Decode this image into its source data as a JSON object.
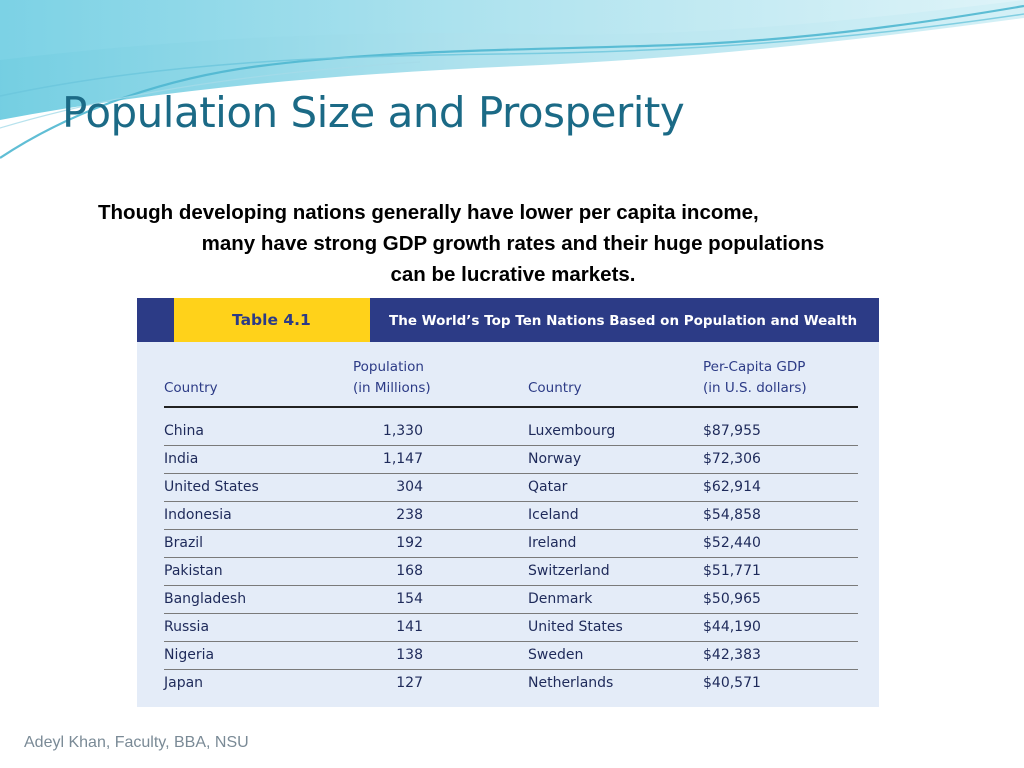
{
  "slide": {
    "title": "Population Size and Prosperity",
    "subtitle_lines": [
      "Though developing nations generally have lower per capita income,",
      "many have strong GDP growth rates and their huge populations",
      "can be lucrative markets."
    ],
    "footer": "Adeyl Khan, Faculty, BBA, NSU"
  },
  "table": {
    "label": "Table 4.1",
    "caption": "The World’s Top Ten Nations Based on Population and Wealth",
    "headers": {
      "country_pop": "Country",
      "population_l1": "Population",
      "population_l2": "(in Millions)",
      "country_gdp": "Country",
      "gdp_l1": "Per-Capita GDP",
      "gdp_l2": "(in U.S. dollars)"
    },
    "rows": [
      {
        "country": "China",
        "population": "1,330",
        "country2": "Luxembourg",
        "gdp": "$87,955"
      },
      {
        "country": "India",
        "population": "1,147",
        "country2": "Norway",
        "gdp": "$72,306"
      },
      {
        "country": "United States",
        "population": "304",
        "country2": "Qatar",
        "gdp": "$62,914"
      },
      {
        "country": "Indonesia",
        "population": "238",
        "country2": "Iceland",
        "gdp": "$54,858"
      },
      {
        "country": "Brazil",
        "population": "192",
        "country2": "Ireland",
        "gdp": "$52,440"
      },
      {
        "country": "Pakistan",
        "population": "168",
        "country2": "Switzerland",
        "gdp": "$51,771"
      },
      {
        "country": "Bangladesh",
        "population": "154",
        "country2": "Denmark",
        "gdp": "$50,965"
      },
      {
        "country": "Russia",
        "population": "141",
        "country2": "United States",
        "gdp": "$44,190"
      },
      {
        "country": "Nigeria",
        "population": "138",
        "country2": "Sweden",
        "gdp": "$42,383"
      },
      {
        "country": "Japan",
        "population": "127",
        "country2": "Netherlands",
        "gdp": "$40,571"
      }
    ]
  },
  "colors": {
    "title": "#1b6a86",
    "table_band": "#2c3b86",
    "table_label_bg": "#ffd21a",
    "table_body_bg": "#e4ecf8",
    "wave_accent": "#5cc6dd"
  }
}
